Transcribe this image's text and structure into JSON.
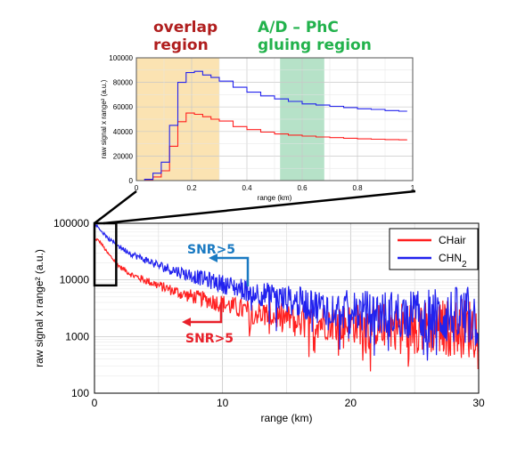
{
  "annotations": {
    "overlap_line1": "overlap",
    "overlap_line2": "region",
    "gluing_line1": "A/D – PhC",
    "gluing_line2": "gluing region",
    "snr_blue": "SNR>5",
    "snr_red": "SNR>5"
  },
  "colors": {
    "overlap_text": "#b01e1e",
    "gluing_text": "#22b24c",
    "overlap_fill": "#fbe3b2",
    "gluing_fill": "#b6e2c8",
    "snr_blue": "#1a7ac2",
    "snr_red": "#e8202a",
    "series_red": "#ff2020",
    "series_blue": "#2222ee"
  },
  "chart_data": [
    {
      "type": "line",
      "panel": "inset",
      "xlabel": "range (km)",
      "ylabel": "raw signal x range² (a.u.)",
      "xlim": [
        0,
        1
      ],
      "ylim": [
        0,
        100000
      ],
      "xticks": [
        "0",
        "0.2",
        "0.4",
        "0.6",
        "0.8",
        "1"
      ],
      "yticks": [
        "0",
        "20000",
        "40000",
        "60000",
        "80000",
        "100000"
      ],
      "grid": true,
      "shaded_regions": [
        {
          "name": "overlap region",
          "x": [
            0,
            0.3
          ]
        },
        {
          "name": "A/D – PhC gluing region",
          "x": [
            0.52,
            0.68
          ]
        }
      ],
      "x": [
        0,
        0.03,
        0.06,
        0.09,
        0.12,
        0.15,
        0.18,
        0.21,
        0.24,
        0.27,
        0.3,
        0.35,
        0.4,
        0.45,
        0.5,
        0.55,
        0.6,
        0.65,
        0.7,
        0.75,
        0.8,
        0.85,
        0.9,
        0.95
      ],
      "series": [
        {
          "values": [
            0,
            500,
            3000,
            8000,
            28000,
            48000,
            55000,
            54000,
            52000,
            50000,
            48500,
            44000,
            41500,
            39500,
            38000,
            37000,
            36200,
            35500,
            35000,
            34500,
            34000,
            33700,
            33400,
            33200
          ]
        },
        {
          "values": [
            0,
            1000,
            6000,
            15000,
            45000,
            80000,
            88000,
            89000,
            86000,
            84000,
            81000,
            76000,
            72000,
            69000,
            66500,
            64500,
            62500,
            61500,
            60500,
            59500,
            58500,
            58000,
            57000,
            56500
          ]
        }
      ]
    },
    {
      "type": "line",
      "panel": "main",
      "xlabel": "range (km)",
      "ylabel": "raw signal x range² (a.u.)",
      "xlim": [
        0,
        30
      ],
      "ylim": [
        100,
        100000
      ],
      "yscale": "log",
      "xticks": [
        "0",
        "10",
        "20",
        "30"
      ],
      "yticks": [
        "100",
        "1000",
        "10000",
        "100000"
      ],
      "grid": true,
      "legend": "top-right",
      "inset_box_x": [
        0,
        1
      ],
      "inset_box_y": [
        8000,
        100000
      ],
      "series": [
        {
          "name": "CHair",
          "anchors_x": [
            0,
            0.2,
            0.5,
            1,
            2,
            3,
            5,
            7,
            10,
            12,
            14,
            16,
            18,
            20,
            22,
            25,
            30
          ],
          "anchors_y": [
            50000,
            52000,
            45000,
            30000,
            17000,
            12000,
            8000,
            5500,
            3800,
            2800,
            2300,
            2000,
            1800,
            1700,
            1600,
            1500,
            1400
          ]
        },
        {
          "name": "CHN2",
          "anchors_x": [
            0,
            0.2,
            0.5,
            1,
            2,
            3,
            5,
            7,
            10,
            12,
            14,
            16,
            18,
            20,
            22,
            25,
            30
          ],
          "anchors_y": [
            95000,
            90000,
            75000,
            55000,
            38000,
            28000,
            18000,
            13000,
            8500,
            6500,
            5000,
            4000,
            3300,
            2900,
            2600,
            2400,
            2200
          ]
        }
      ],
      "legend_entries": [
        {
          "label": "CHair",
          "color": "#ff2020"
        },
        {
          "label": "CHN2",
          "color": "#2222ee"
        }
      ]
    }
  ]
}
